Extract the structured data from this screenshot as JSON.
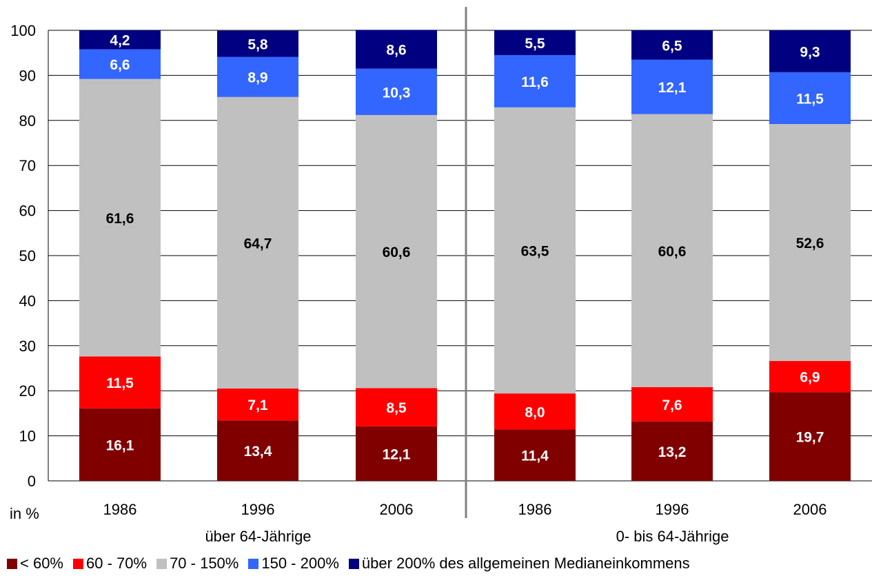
{
  "chart_data": {
    "type": "bar",
    "stacked": true,
    "ylim": [
      0,
      100
    ],
    "yticks": [
      "0",
      "10",
      "20",
      "30",
      "40",
      "50",
      "60",
      "70",
      "80",
      "90",
      "100"
    ],
    "unit_label": "in %",
    "grid": true,
    "legend_position": "bottom",
    "groups": [
      {
        "label": "über 64-Jährige",
        "categories": [
          "1986",
          "1996",
          "2006"
        ]
      },
      {
        "label": "0- bis 64-Jährige",
        "categories": [
          "1986",
          "1996",
          "2006"
        ]
      }
    ],
    "categories": [
      "1986",
      "1996",
      "2006",
      "1986",
      "1996",
      "2006"
    ],
    "series": [
      {
        "name": "< 60%",
        "color": "#800000",
        "label_color": "#ffffff",
        "values": [
          16.1,
          13.4,
          12.1,
          11.4,
          13.2,
          19.7
        ],
        "labels": [
          "16,1",
          "13,4",
          "12,1",
          "11,4",
          "13,2",
          "19,7"
        ]
      },
      {
        "name": "60 - 70%",
        "color": "#ff0000",
        "label_color": "#ffffff",
        "values": [
          11.5,
          7.1,
          8.5,
          8.0,
          7.6,
          6.9
        ],
        "labels": [
          "11,5",
          "7,1",
          "8,5",
          "8,0",
          "7,6",
          "6,9"
        ]
      },
      {
        "name": "70 - 150%",
        "color": "#c0c0c0",
        "label_color": "#000000",
        "values": [
          61.6,
          64.7,
          60.6,
          63.5,
          60.6,
          52.6
        ],
        "labels": [
          "61,6",
          "64,7",
          "60,6",
          "63,5",
          "60,6",
          "52,6"
        ]
      },
      {
        "name": "150 - 200%",
        "color": "#3366ff",
        "label_color": "#ffffff",
        "values": [
          6.6,
          8.9,
          10.3,
          11.6,
          12.1,
          11.5
        ],
        "labels": [
          "6,6",
          "8,9",
          "10,3",
          "11,6",
          "12,1",
          "11,5"
        ]
      },
      {
        "name": "über 200% des allgemeinen Medianeinkommens",
        "color": "#000080",
        "label_color": "#ffffff",
        "values": [
          4.2,
          5.8,
          8.6,
          5.5,
          6.5,
          9.3
        ],
        "labels": [
          "4,2",
          "5,8",
          "8,6",
          "5,5",
          "6,5",
          "9,3"
        ]
      }
    ]
  }
}
